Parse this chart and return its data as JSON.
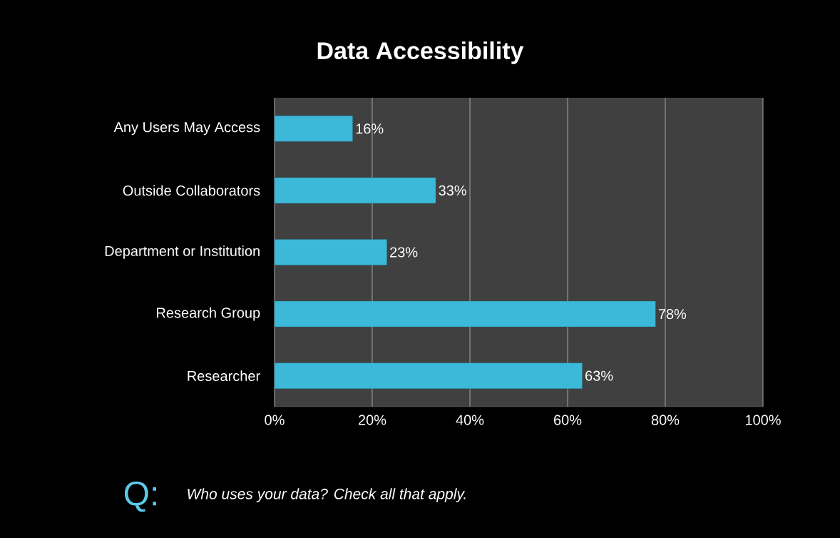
{
  "chart_data": {
    "type": "bar",
    "orientation": "horizontal",
    "title": "Data Accessibility",
    "categories": [
      "Any Users May Access",
      "Outside Collaborators",
      "Department or Institution",
      "Research Group",
      "Researcher"
    ],
    "values": [
      16,
      33,
      23,
      78,
      63
    ],
    "value_labels": [
      "16%",
      "33%",
      "23%",
      "78%",
      "63%"
    ],
    "color": "#3cb9d9",
    "xlim": [
      0,
      100
    ],
    "xticks": [
      {
        "value": 0,
        "label": "0%"
      },
      {
        "value": 20,
        "label": "20%"
      },
      {
        "value": 40,
        "label": "40%"
      },
      {
        "value": 60,
        "label": "60%"
      },
      {
        "value": 80,
        "label": "80%"
      },
      {
        "value": 100,
        "label": "100%"
      }
    ],
    "grid": "x",
    "annotations": [
      "Q:",
      "Who uses your data? Check all that apply."
    ]
  }
}
